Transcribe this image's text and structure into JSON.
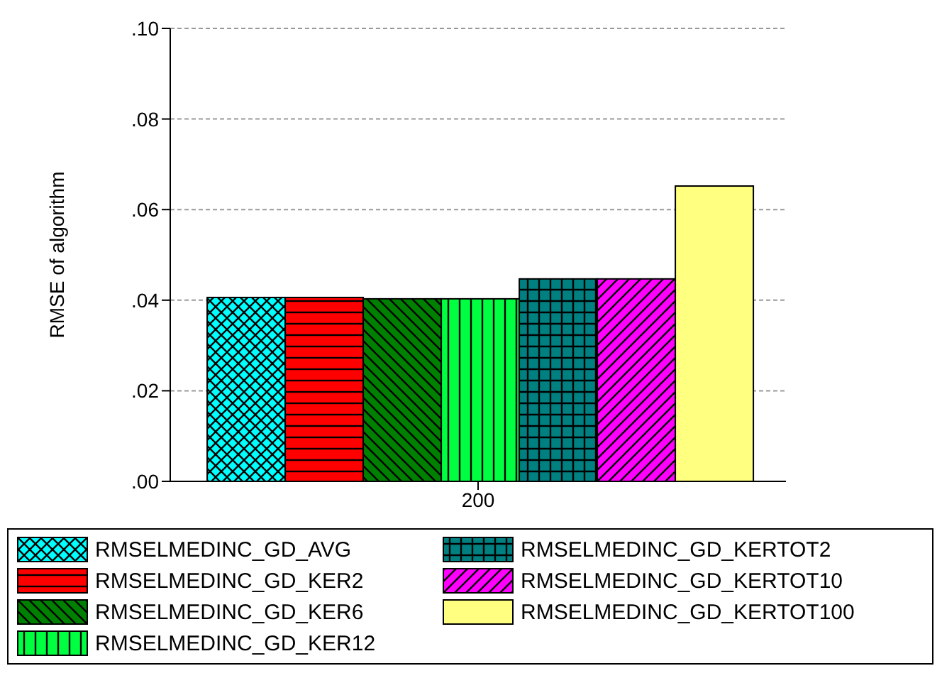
{
  "chart_data": {
    "type": "bar",
    "ylabel": "RMSE of algorithm",
    "categories": [
      "200"
    ],
    "series": [
      {
        "name": "RMSELMEDINC_GD_AVG",
        "color": "#00ffff",
        "values": [
          0.0406
        ]
      },
      {
        "name": "RMSELMEDINC_GD_KER2",
        "color": "#ff0000",
        "values": [
          0.0406
        ]
      },
      {
        "name": "RMSELMEDINC_GD_KER6",
        "color": "#008000",
        "values": [
          0.0403
        ]
      },
      {
        "name": "RMSELMEDINC_GD_KER12",
        "color": "#00ff40",
        "values": [
          0.0403
        ]
      },
      {
        "name": "RMSELMEDINC_GD_KERTOT2",
        "color": "#008080",
        "values": [
          0.0447
        ]
      },
      {
        "name": "RMSELMEDINC_GD_KERTOT10",
        "color": "#ff00ff",
        "values": [
          0.0447
        ]
      },
      {
        "name": "RMSELMEDINC_GD_KERTOT100",
        "color": "#ffff80",
        "values": [
          0.0652
        ]
      }
    ],
    "ylim": [
      0,
      0.1
    ],
    "yticks": [
      {
        "value": 0,
        "label": ".00"
      },
      {
        "value": 0.02,
        "label": ".02"
      },
      {
        "value": 0.04,
        "label": ".04"
      },
      {
        "value": 0.06,
        "label": ".06"
      },
      {
        "value": 0.08,
        "label": ".08"
      },
      {
        "value": 0.1,
        "label": ".10"
      }
    ],
    "grid": "y",
    "legend": "bottom"
  }
}
